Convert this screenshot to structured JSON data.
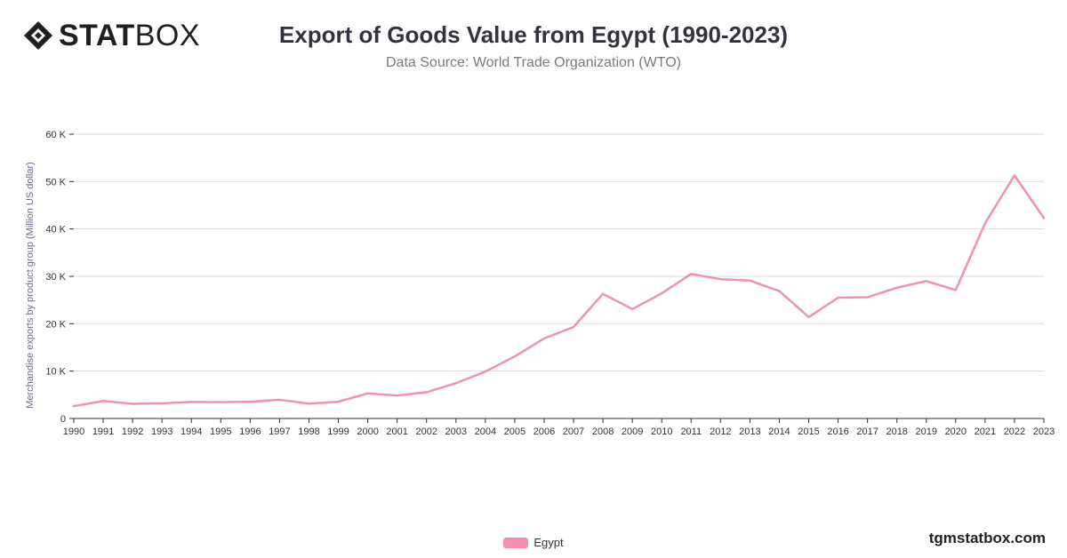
{
  "brand": {
    "logo_bold": "STAT",
    "logo_light": "BOX",
    "watermark": "tgmstatbox.com"
  },
  "header": {
    "title": "Export of Goods Value from Egypt (1990-2023)",
    "subtitle": "Data Source: World Trade Organization (WTO)"
  },
  "colors": {
    "series": "#f48fb1",
    "grid": "#dddddd",
    "axis": "#333333",
    "ylabel": "#6b6b8a"
  },
  "chart_data": {
    "type": "line",
    "title": "Export of Goods Value from Egypt (1990-2023)",
    "ylabel": "Merchandise exports by product group (Million US dollar)",
    "xlabel": "",
    "ylim": [
      0,
      60000
    ],
    "yticks": [
      0,
      10000,
      20000,
      30000,
      40000,
      50000,
      60000
    ],
    "ytick_labels": [
      "0",
      "10 K",
      "20 K",
      "30 K",
      "40 K",
      "50 K",
      "60 K"
    ],
    "grid": true,
    "legend_position": "bottom-center",
    "x": [
      "1990",
      "1991",
      "1992",
      "1993",
      "1994",
      "1995",
      "1996",
      "1997",
      "1998",
      "1999",
      "2000",
      "2001",
      "2002",
      "2003",
      "2004",
      "2005",
      "2006",
      "2007",
      "2008",
      "2009",
      "2010",
      "2011",
      "2012",
      "2013",
      "2014",
      "2015",
      "2016",
      "2017",
      "2018",
      "2019",
      "2020",
      "2021",
      "2022",
      "2023"
    ],
    "series": [
      {
        "name": "Egypt",
        "color": "#f48fb1",
        "values": [
          2600,
          3700,
          3100,
          3200,
          3500,
          3450,
          3550,
          3950,
          3150,
          3550,
          5300,
          4850,
          5550,
          7450,
          9900,
          13100,
          16900,
          19300,
          26300,
          23100,
          26400,
          30500,
          29400,
          29100,
          26900,
          21400,
          25500,
          25600,
          27600,
          29000,
          27100,
          41200,
          51300,
          42300
        ]
      }
    ]
  },
  "legend": {
    "label": "Egypt"
  }
}
